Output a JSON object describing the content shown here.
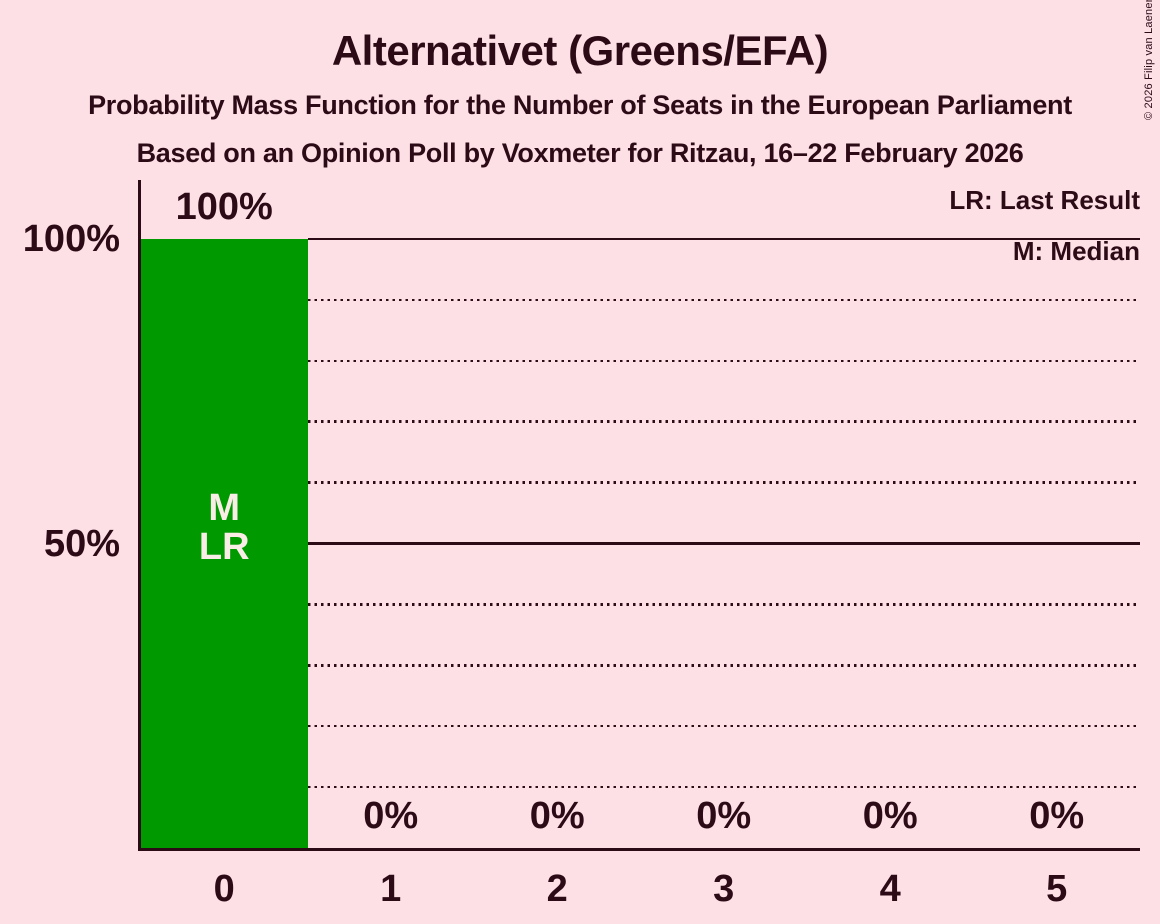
{
  "title": "Alternativet (Greens/EFA)",
  "subtitle1": "Probability Mass Function for the Number of Seats in the European Parliament",
  "subtitle2": "Based on an Opinion Poll by Voxmeter for Ritzau, 16–22 February 2026",
  "copyright": "© 2026 Filip van Laenen",
  "legend": {
    "lr": "LR: Last Result",
    "m": "M: Median"
  },
  "colors": {
    "background": "#FCE0E6",
    "bar": "#009A00",
    "text": "#2C0A16",
    "bar_label_text": "#FAECE7"
  },
  "chart_data": {
    "type": "bar",
    "title": "Alternativet (Greens/EFA)",
    "subtitle": "Probability Mass Function for the Number of Seats in the European Parliament",
    "source_note": "Based on an Opinion Poll by Voxmeter for Ritzau, 16–22 February 2026",
    "categories": [
      "0",
      "1",
      "2",
      "3",
      "4",
      "5"
    ],
    "values": [
      100,
      0,
      0,
      0,
      0,
      0
    ],
    "value_labels": [
      "100%",
      "0%",
      "0%",
      "0%",
      "0%",
      "0%"
    ],
    "ylim": [
      0,
      100
    ],
    "ytick_values": [
      100,
      50
    ],
    "ytick_labels": [
      "100%",
      "50%"
    ],
    "solid_gridline_values": [
      100,
      50
    ],
    "dotted_gridline_values": [
      90,
      80,
      70,
      60,
      40,
      30,
      20,
      10
    ],
    "legend_entries": [
      "LR: Last Result",
      "M: Median"
    ],
    "legend_position": "top-right",
    "annotations": [
      {
        "category": "0",
        "lines": [
          "M",
          "LR"
        ]
      }
    ]
  }
}
